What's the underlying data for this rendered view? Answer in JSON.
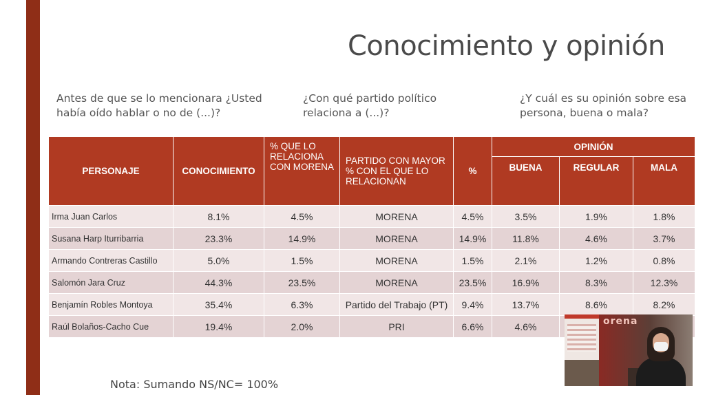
{
  "slide": {
    "title": "Conocimiento y opinión",
    "questions": [
      "Antes de que se lo mencionara ¿Usted había oído hablar o no de (...)?",
      "¿Con qué partido político relaciona a (...)?",
      "¿Y cuál es su opinión sobre esa persona, buena o mala?"
    ],
    "note": "Nota: Sumando NS/NC= 100%"
  },
  "table": {
    "headers": {
      "personaje": "PERSONAJE",
      "conocimiento": "CONOCIMIENTO",
      "relaciona": "% QUE LO RELACIONA CON MORENA",
      "partido": "PARTIDO CON MAYOR % CON EL QUE LO RELACIONAN",
      "pct": "%",
      "opinion": "OPINIÓN",
      "buena": "BUENA",
      "regular": "REGULAR",
      "mala": "MALA"
    },
    "rows": [
      {
        "name": "Irma Juan Carlos",
        "conocimiento": "8.1%",
        "relaciona": "4.5%",
        "partido": "MORENA",
        "pct": "4.5%",
        "buena": "3.5%",
        "regular": "1.9%",
        "mala": "1.8%"
      },
      {
        "name": "Susana Harp Iturribarria",
        "conocimiento": "23.3%",
        "relaciona": "14.9%",
        "partido": "MORENA",
        "pct": "14.9%",
        "buena": "11.8%",
        "regular": "4.6%",
        "mala": "3.7%"
      },
      {
        "name": "Armando Contreras Castillo",
        "conocimiento": "5.0%",
        "relaciona": "1.5%",
        "partido": "MORENA",
        "pct": "1.5%",
        "buena": "2.1%",
        "regular": "1.2%",
        "mala": "0.8%"
      },
      {
        "name": "Salomón Jara Cruz",
        "conocimiento": "44.3%",
        "relaciona": "23.5%",
        "partido": "MORENA",
        "pct": "23.5%",
        "buena": "16.9%",
        "regular": "8.3%",
        "mala": "12.3%"
      },
      {
        "name": "Benjamín Robles Montoya",
        "conocimiento": "35.4%",
        "relaciona": "6.3%",
        "partido": "Partido del Trabajo (PT)",
        "pct": "9.4%",
        "buena": "13.7%",
        "regular": "8.6%",
        "mala": "8.2%"
      },
      {
        "name": "Raúl Bolaños-Cacho Cue",
        "conocimiento": "19.4%",
        "relaciona": "2.0%",
        "partido": "PRI",
        "pct": "6.6%",
        "buena": "4.6%",
        "regular": "",
        "mala": ""
      }
    ]
  },
  "video_overlay": {
    "banner_text": "orena"
  },
  "colors": {
    "accent_bar": "#8f2e17",
    "header_fill": "#b03a22",
    "row_light": "#f1e6e6",
    "row_dark": "#e4d3d4"
  }
}
